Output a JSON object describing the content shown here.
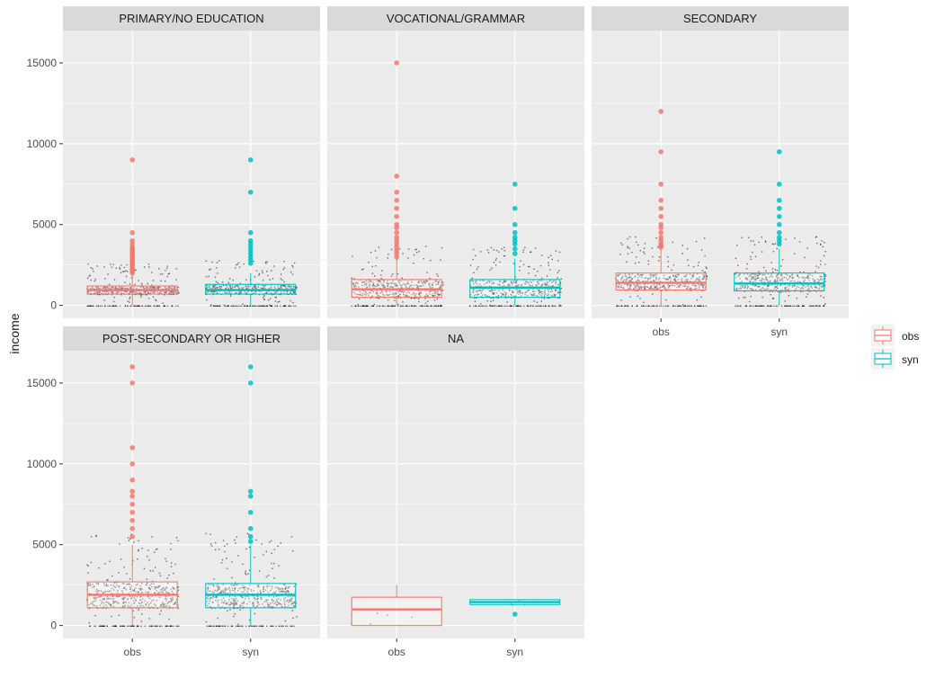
{
  "chart_data": {
    "type": "boxplot",
    "ylabel": "income",
    "ylim": [
      -800,
      17000
    ],
    "yticks": [
      0,
      5000,
      10000,
      15000
    ],
    "ytick_labels": [
      "0",
      "5000",
      "10000",
      "15000"
    ],
    "categories": [
      "obs",
      "syn"
    ],
    "legend": {
      "position": "right",
      "entries": [
        {
          "label": "obs",
          "color": "#F8766D"
        },
        {
          "label": "syn",
          "color": "#00BFC4"
        }
      ]
    },
    "colors": {
      "obs": "#F8766D",
      "syn": "#00BFC4",
      "panel": "#EBEBEB",
      "strip": "#D9D9D9",
      "grid": "#FFFFFF"
    },
    "panels": [
      {
        "title": "PRIMARY/NO EDUCATION",
        "boxes": [
          {
            "group": "obs",
            "q1": 700,
            "median": 950,
            "q3": 1200,
            "whisker_low": 0,
            "whisker_high": 1900,
            "outliers": [
              2000,
              2100,
              2200,
              2300,
              2400,
              2500,
              2600,
              2700,
              2800,
              2900,
              3000,
              3100,
              3200,
              3300,
              3400,
              3500,
              3600,
              3800,
              4000,
              4500,
              9000
            ]
          },
          {
            "group": "syn",
            "q1": 700,
            "median": 950,
            "q3": 1300,
            "whisker_low": 0,
            "whisker_high": 2000,
            "outliers": [
              2600,
              2800,
              3000,
              3200,
              3400,
              3600,
              3800,
              4000,
              4500,
              7000,
              9000
            ]
          }
        ]
      },
      {
        "title": "VOCATIONAL/GRAMMAR",
        "boxes": [
          {
            "group": "obs",
            "q1": 500,
            "median": 1000,
            "q3": 1600,
            "whisker_low": 0,
            "whisker_high": 2900,
            "outliers": [
              3000,
              3200,
              3400,
              3600,
              3800,
              4000,
              4200,
              4500,
              4800,
              5000,
              5500,
              6000,
              6500,
              7000,
              8000,
              15000
            ]
          },
          {
            "group": "syn",
            "q1": 500,
            "median": 1100,
            "q3": 1600,
            "whisker_low": 0,
            "whisker_high": 2900,
            "outliers": [
              3200,
              3500,
              3800,
              4000,
              4200,
              4500,
              5000,
              6000,
              7500
            ]
          }
        ]
      },
      {
        "title": "SECONDARY",
        "boxes": [
          {
            "group": "obs",
            "q1": 950,
            "median": 1400,
            "q3": 2000,
            "whisker_low": 0,
            "whisker_high": 3500,
            "outliers": [
              3600,
              3700,
              3800,
              4000,
              4200,
              4500,
              4800,
              5000,
              5500,
              6000,
              6500,
              7500,
              9500,
              12000
            ]
          },
          {
            "group": "syn",
            "q1": 900,
            "median": 1350,
            "q3": 2000,
            "whisker_low": 0,
            "whisker_high": 3500,
            "outliers": [
              3800,
              4000,
              4200,
              4500,
              5000,
              5500,
              6000,
              6500,
              7500,
              9500
            ]
          }
        ]
      },
      {
        "title": "POST-SECONDARY OR HIGHER",
        "boxes": [
          {
            "group": "obs",
            "q1": 1100,
            "median": 1900,
            "q3": 2700,
            "whisker_low": 0,
            "whisker_high": 5000,
            "outliers": [
              5500,
              6000,
              6500,
              7000,
              7500,
              8000,
              8300,
              9000,
              10000,
              11000,
              15000,
              16000
            ]
          },
          {
            "group": "syn",
            "q1": 1100,
            "median": 1900,
            "q3": 2600,
            "whisker_low": 0,
            "whisker_high": 5000,
            "outliers": [
              5200,
              5500,
              6000,
              7000,
              8000,
              8300,
              15000,
              16000
            ]
          }
        ]
      },
      {
        "title": "NA",
        "boxes": [
          {
            "group": "obs",
            "q1": 0,
            "median": 1000,
            "q3": 1750,
            "whisker_low": 0,
            "whisker_high": 2500,
            "outliers": []
          },
          {
            "group": "syn",
            "q1": 1300,
            "median": 1450,
            "q3": 1600,
            "whisker_low": 1300,
            "whisker_high": 1600,
            "outliers": [
              700
            ]
          }
        ]
      }
    ]
  }
}
